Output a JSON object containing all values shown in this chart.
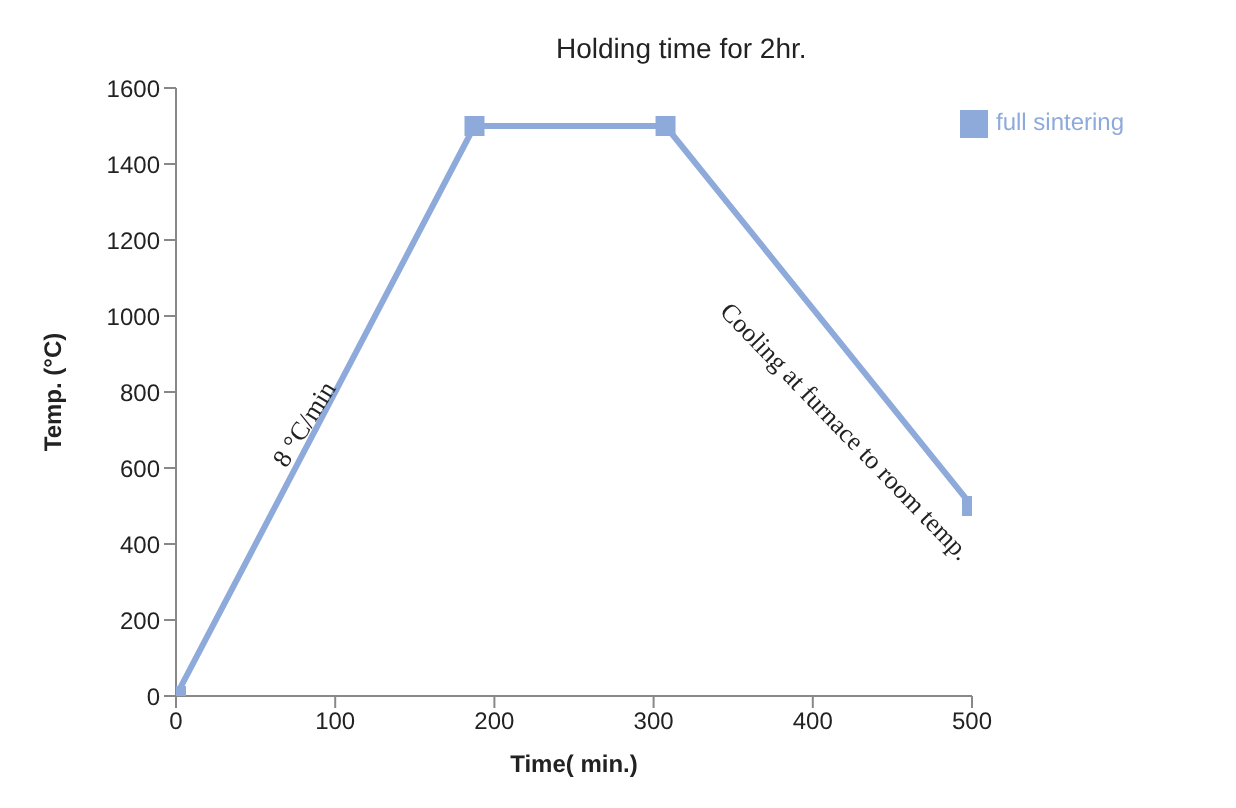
{
  "chart_data": {
    "type": "line",
    "xlabel": "Time( min.)",
    "ylabel": "Temp. (°C)",
    "x": [
      0,
      187.5,
      307.5,
      500
    ],
    "series": [
      {
        "name": "full sintering",
        "color": "#8eaadb",
        "values": [
          0,
          1500,
          1500,
          500
        ]
      }
    ],
    "xlim": [
      0,
      500
    ],
    "xticks": [
      0,
      100,
      200,
      300,
      400,
      500
    ],
    "ylim": [
      0,
      1600
    ],
    "yticks": [
      0,
      200,
      400,
      600,
      800,
      1000,
      1200,
      1400,
      1600
    ],
    "marker": "square",
    "line_style": "solid",
    "grid": false,
    "legend": "top right",
    "annotations": [
      "Holding time for 2hr.",
      "8 °C/min",
      "Cooling at furnace to room temp."
    ]
  }
}
